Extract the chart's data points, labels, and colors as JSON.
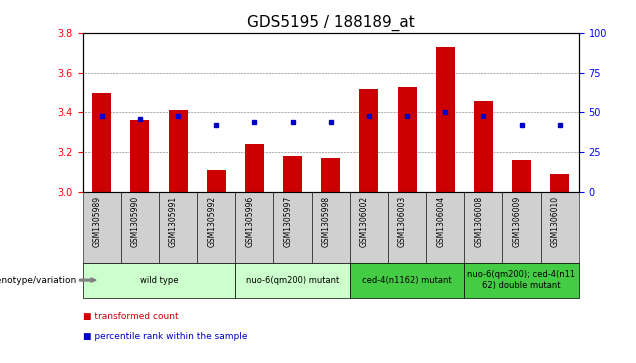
{
  "title": "GDS5195 / 188189_at",
  "samples": [
    "GSM1305989",
    "GSM1305990",
    "GSM1305991",
    "GSM1305992",
    "GSM1305996",
    "GSM1305997",
    "GSM1305998",
    "GSM1306002",
    "GSM1306003",
    "GSM1306004",
    "GSM1306008",
    "GSM1306009",
    "GSM1306010"
  ],
  "bar_values": [
    3.5,
    3.36,
    3.41,
    3.11,
    3.24,
    3.18,
    3.17,
    3.52,
    3.53,
    3.73,
    3.46,
    3.16,
    3.09
  ],
  "dot_values": [
    48,
    46,
    48,
    42,
    44,
    44,
    44,
    48,
    48,
    50,
    48,
    42,
    42
  ],
  "ylim_left": [
    3.0,
    3.8
  ],
  "ylim_right": [
    0,
    100
  ],
  "yticks_left": [
    3.0,
    3.2,
    3.4,
    3.6,
    3.8
  ],
  "yticks_right": [
    0,
    25,
    50,
    75,
    100
  ],
  "bar_color": "#cc0000",
  "dot_color": "#0000cc",
  "bar_width": 0.5,
  "groups": [
    {
      "label": "wild type",
      "indices": [
        0,
        1,
        2,
        3
      ],
      "color": "#ccffcc",
      "border_color": "#aaaaaa"
    },
    {
      "label": "nuo-6(qm200) mutant",
      "indices": [
        4,
        5,
        6
      ],
      "color": "#ccffcc",
      "border_color": "#aaaaaa"
    },
    {
      "label": "ced-4(n1162) mutant",
      "indices": [
        7,
        8,
        9
      ],
      "color": "#44cc44",
      "border_color": "#aaaaaa"
    },
    {
      "label": "nuo-6(qm200); ced-4(n11\n62) double mutant",
      "indices": [
        10,
        11,
        12
      ],
      "color": "#44cc44",
      "border_color": "#aaaaaa"
    }
  ],
  "sample_box_color": "#d0d0d0",
  "genotype_label": "genotype/variation",
  "legend_items": [
    {
      "label": "transformed count",
      "color": "#cc0000"
    },
    {
      "label": "percentile rank within the sample",
      "color": "#0000cc"
    }
  ],
  "plot_bg": "#ffffff",
  "title_fontsize": 11,
  "tick_fontsize": 7,
  "sample_fontsize": 5.5,
  "group_fontsize": 6,
  "legend_fontsize": 6.5
}
